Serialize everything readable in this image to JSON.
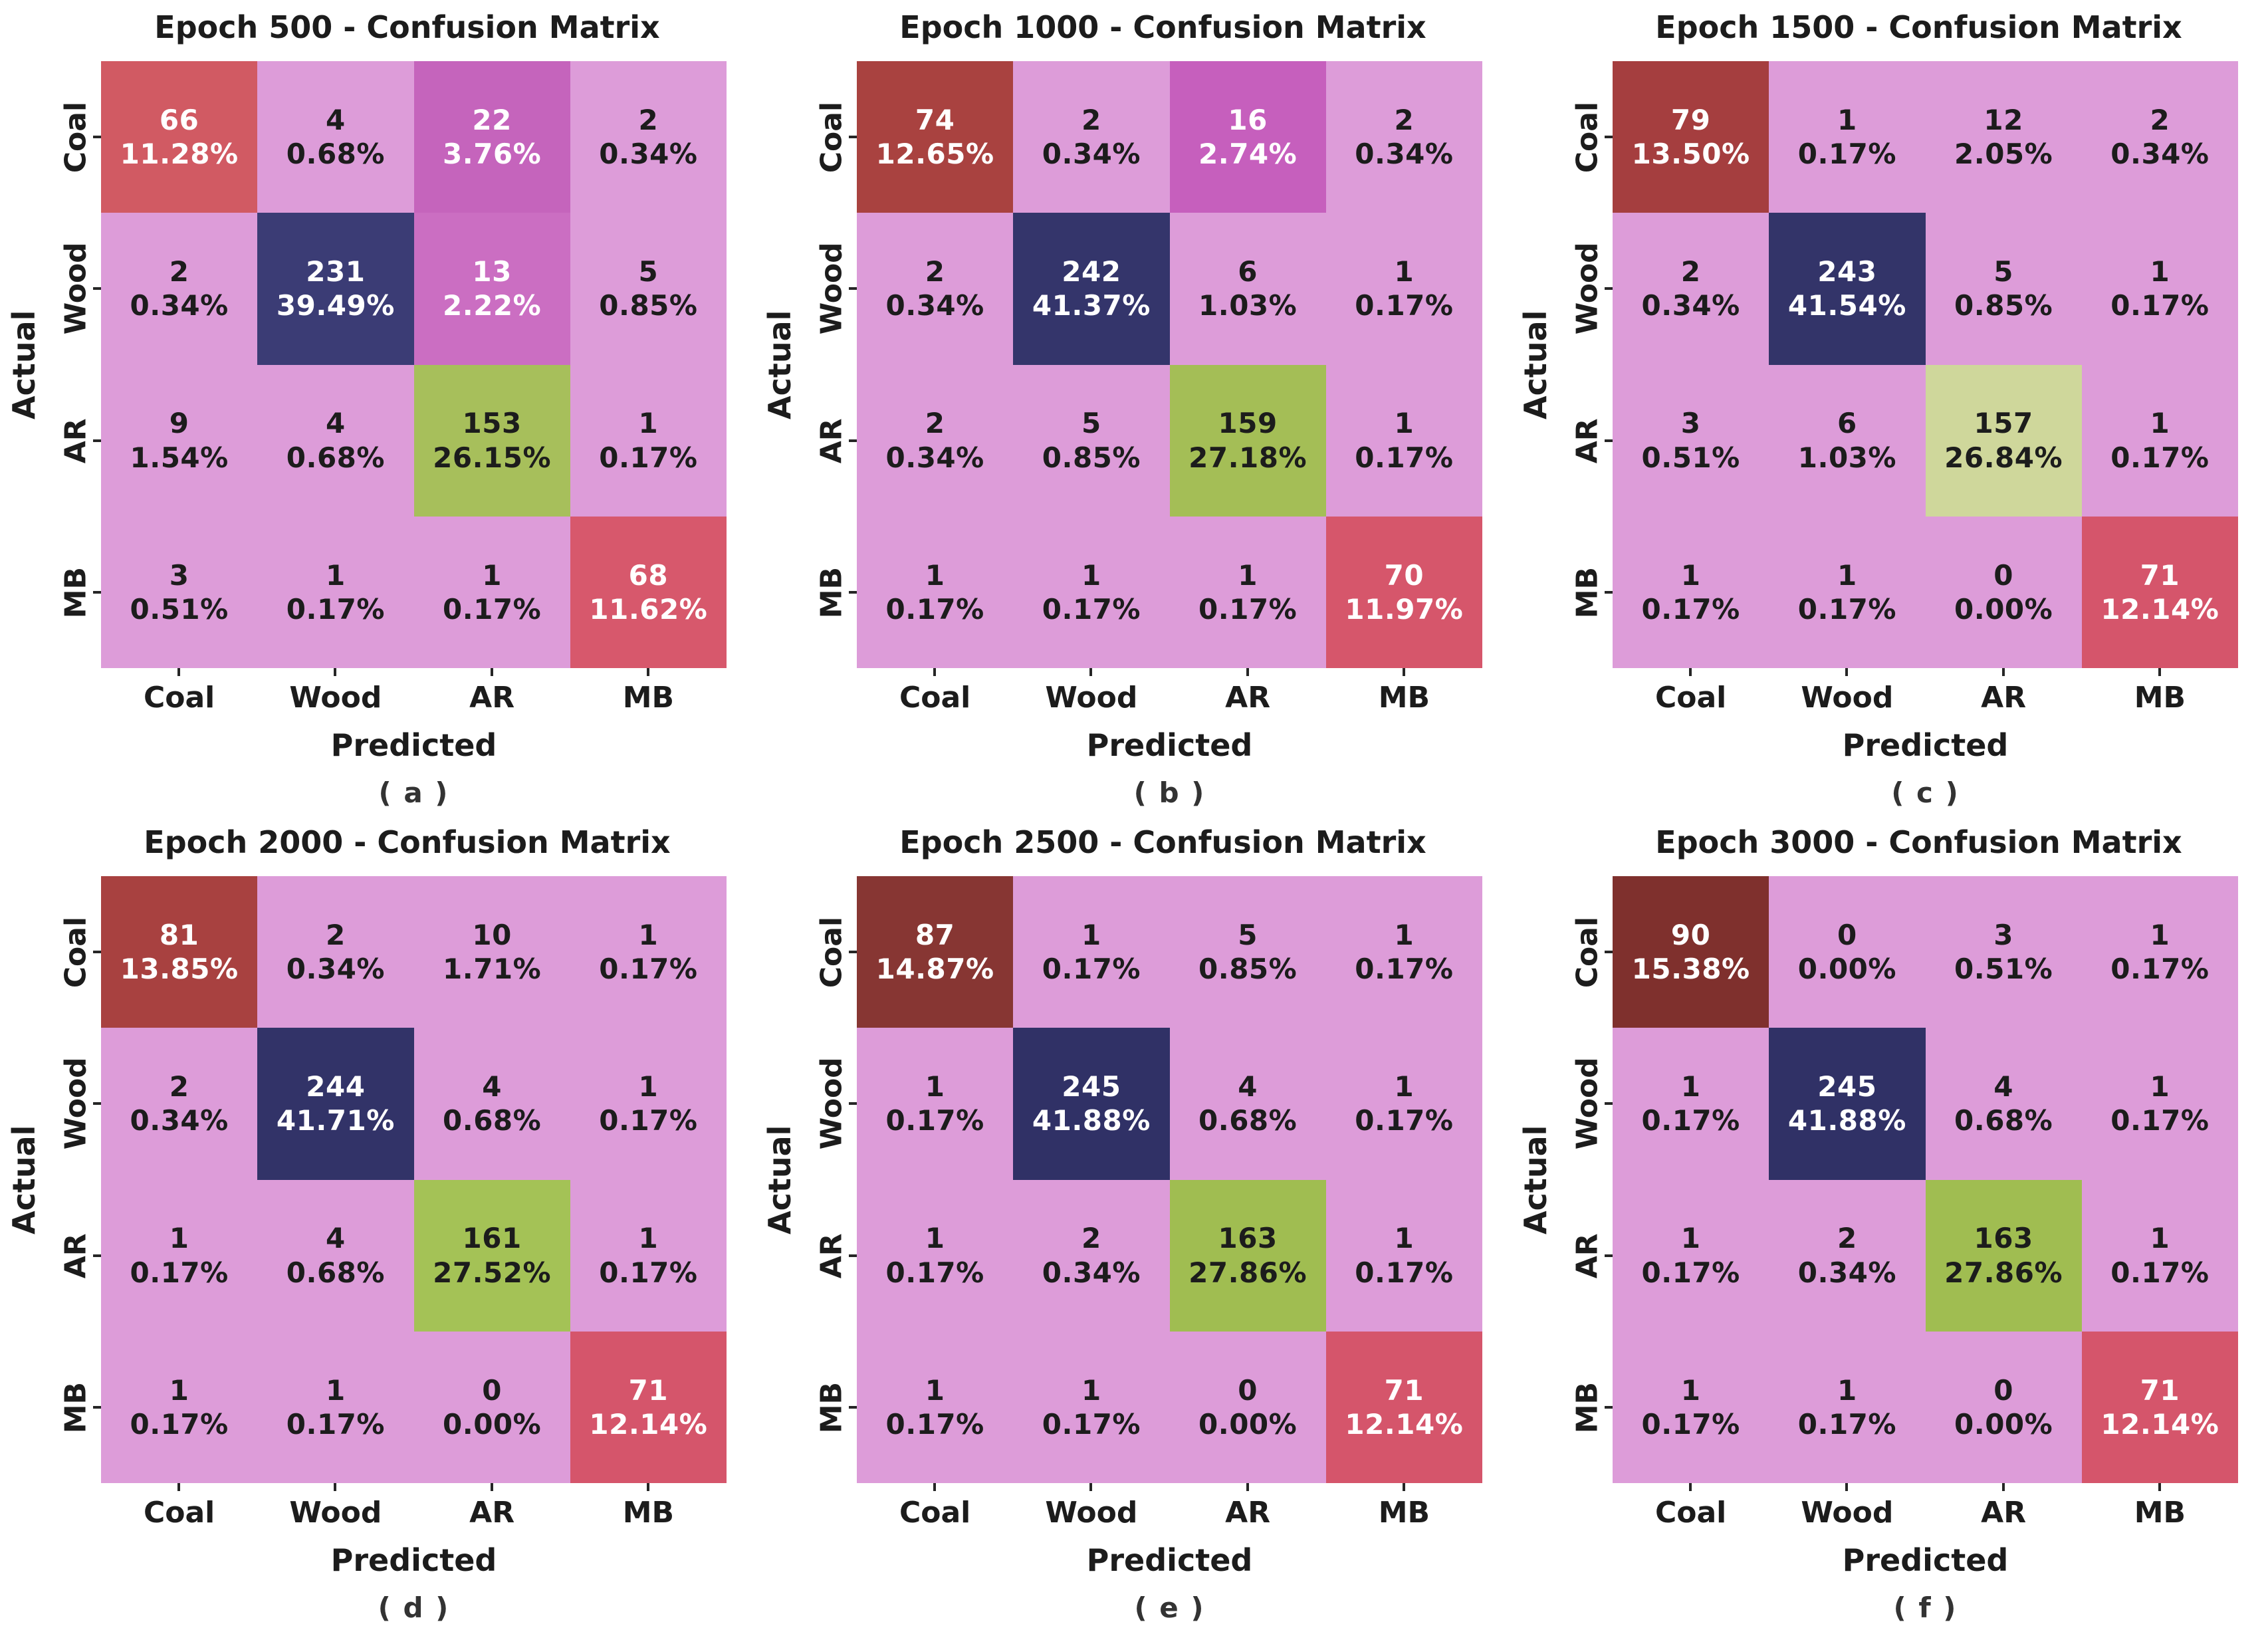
{
  "colors": {
    "plum": "#DD9CD9",
    "text_dark": "#1c1c1c",
    "text_light": "#ffffff"
  },
  "axis": {
    "x_label": "Predicted",
    "y_label": "Actual",
    "classes": [
      "Coal",
      "Wood",
      "AR",
      "MB"
    ]
  },
  "chart_data": [
    {
      "type": "heatmap",
      "title": "Epoch 500 - Confusion Matrix",
      "caption": "( a )",
      "xlabel": "Predicted",
      "ylabel": "Actual",
      "x_categories": [
        "Coal",
        "Wood",
        "AR",
        "MB"
      ],
      "y_categories": [
        "Coal",
        "Wood",
        "AR",
        "MB"
      ],
      "cells": [
        [
          {
            "count": 66,
            "pct": "11.28%",
            "bg": "#D15A63",
            "fg": "light"
          },
          {
            "count": 4,
            "pct": "0.68%"
          },
          {
            "count": 22,
            "pct": "3.76%",
            "bg": "#C564BC",
            "fg": "light"
          },
          {
            "count": 2,
            "pct": "0.34%"
          }
        ],
        [
          {
            "count": 2,
            "pct": "0.34%"
          },
          {
            "count": 231,
            "pct": "39.49%",
            "bg": "#3B3C75",
            "fg": "light"
          },
          {
            "count": 13,
            "pct": "2.22%",
            "bg": "#CB6EC2",
            "fg": "light"
          },
          {
            "count": 5,
            "pct": "0.85%"
          }
        ],
        [
          {
            "count": 9,
            "pct": "1.54%"
          },
          {
            "count": 4,
            "pct": "0.68%"
          },
          {
            "count": 153,
            "pct": "26.15%",
            "bg": "#A7BF5B"
          },
          {
            "count": 1,
            "pct": "0.17%"
          }
        ],
        [
          {
            "count": 3,
            "pct": "0.51%"
          },
          {
            "count": 1,
            "pct": "0.17%"
          },
          {
            "count": 1,
            "pct": "0.17%"
          },
          {
            "count": 68,
            "pct": "11.62%",
            "bg": "#D7586C",
            "fg": "light"
          }
        ]
      ]
    },
    {
      "type": "heatmap",
      "title": "Epoch 1000 - Confusion Matrix",
      "caption": "( b )",
      "xlabel": "Predicted",
      "ylabel": "Actual",
      "x_categories": [
        "Coal",
        "Wood",
        "AR",
        "MB"
      ],
      "y_categories": [
        "Coal",
        "Wood",
        "AR",
        "MB"
      ],
      "cells": [
        [
          {
            "count": 74,
            "pct": "12.65%",
            "bg": "#A94240",
            "fg": "light"
          },
          {
            "count": 2,
            "pct": "0.34%"
          },
          {
            "count": 16,
            "pct": "2.74%",
            "bg": "#C65FBD",
            "fg": "light"
          },
          {
            "count": 2,
            "pct": "0.34%"
          }
        ],
        [
          {
            "count": 2,
            "pct": "0.34%"
          },
          {
            "count": 242,
            "pct": "41.37%",
            "bg": "#34356B",
            "fg": "light"
          },
          {
            "count": 6,
            "pct": "1.03%"
          },
          {
            "count": 1,
            "pct": "0.17%"
          }
        ],
        [
          {
            "count": 2,
            "pct": "0.34%"
          },
          {
            "count": 5,
            "pct": "0.85%"
          },
          {
            "count": 159,
            "pct": "27.18%",
            "bg": "#A4BE56"
          },
          {
            "count": 1,
            "pct": "0.17%"
          }
        ],
        [
          {
            "count": 1,
            "pct": "0.17%"
          },
          {
            "count": 1,
            "pct": "0.17%"
          },
          {
            "count": 1,
            "pct": "0.17%"
          },
          {
            "count": 70,
            "pct": "11.97%",
            "bg": "#D6566B",
            "fg": "light"
          }
        ]
      ]
    },
    {
      "type": "heatmap",
      "title": "Epoch 1500 - Confusion Matrix",
      "caption": "( c )",
      "xlabel": "Predicted",
      "ylabel": "Actual",
      "x_categories": [
        "Coal",
        "Wood",
        "AR",
        "MB"
      ],
      "y_categories": [
        "Coal",
        "Wood",
        "AR",
        "MB"
      ],
      "cells": [
        [
          {
            "count": 79,
            "pct": "13.50%",
            "bg": "#A53E3F",
            "fg": "light"
          },
          {
            "count": 1,
            "pct": "0.17%"
          },
          {
            "count": 12,
            "pct": "2.05%"
          },
          {
            "count": 2,
            "pct": "0.34%"
          }
        ],
        [
          {
            "count": 2,
            "pct": "0.34%"
          },
          {
            "count": 243,
            "pct": "41.54%",
            "bg": "#333469",
            "fg": "light"
          },
          {
            "count": 5,
            "pct": "0.85%"
          },
          {
            "count": 1,
            "pct": "0.17%"
          }
        ],
        [
          {
            "count": 3,
            "pct": "0.51%"
          },
          {
            "count": 6,
            "pct": "1.03%"
          },
          {
            "count": 157,
            "pct": "26.84%",
            "bg": "#CFD79B"
          },
          {
            "count": 1,
            "pct": "0.17%"
          }
        ],
        [
          {
            "count": 1,
            "pct": "0.17%"
          },
          {
            "count": 1,
            "pct": "0.17%"
          },
          {
            "count": 0,
            "pct": "0.00%"
          },
          {
            "count": 71,
            "pct": "12.14%",
            "bg": "#D5556B",
            "fg": "light"
          }
        ]
      ]
    },
    {
      "type": "heatmap",
      "title": "Epoch 2000 - Confusion Matrix",
      "caption": "( d )",
      "xlabel": "Predicted",
      "ylabel": "Actual",
      "x_categories": [
        "Coal",
        "Wood",
        "AR",
        "MB"
      ],
      "y_categories": [
        "Coal",
        "Wood",
        "AR",
        "MB"
      ],
      "cells": [
        [
          {
            "count": 81,
            "pct": "13.85%",
            "bg": "#A84140",
            "fg": "light"
          },
          {
            "count": 2,
            "pct": "0.34%"
          },
          {
            "count": 10,
            "pct": "1.71%"
          },
          {
            "count": 1,
            "pct": "0.17%"
          }
        ],
        [
          {
            "count": 2,
            "pct": "0.34%"
          },
          {
            "count": 244,
            "pct": "41.71%",
            "bg": "#323368",
            "fg": "light"
          },
          {
            "count": 4,
            "pct": "0.68%"
          },
          {
            "count": 1,
            "pct": "0.17%"
          }
        ],
        [
          {
            "count": 1,
            "pct": "0.17%"
          },
          {
            "count": 4,
            "pct": "0.68%"
          },
          {
            "count": 161,
            "pct": "27.52%",
            "bg": "#A4C256"
          },
          {
            "count": 1,
            "pct": "0.17%"
          }
        ],
        [
          {
            "count": 1,
            "pct": "0.17%"
          },
          {
            "count": 1,
            "pct": "0.17%"
          },
          {
            "count": 0,
            "pct": "0.00%"
          },
          {
            "count": 71,
            "pct": "12.14%",
            "bg": "#D5556B",
            "fg": "light"
          }
        ]
      ]
    },
    {
      "type": "heatmap",
      "title": "Epoch 2500 - Confusion Matrix",
      "caption": "( e )",
      "xlabel": "Predicted",
      "ylabel": "Actual",
      "x_categories": [
        "Coal",
        "Wood",
        "AR",
        "MB"
      ],
      "y_categories": [
        "Coal",
        "Wood",
        "AR",
        "MB"
      ],
      "cells": [
        [
          {
            "count": 87,
            "pct": "14.87%",
            "bg": "#873633",
            "fg": "light"
          },
          {
            "count": 1,
            "pct": "0.17%"
          },
          {
            "count": 5,
            "pct": "0.85%"
          },
          {
            "count": 1,
            "pct": "0.17%"
          }
        ],
        [
          {
            "count": 1,
            "pct": "0.17%"
          },
          {
            "count": 245,
            "pct": "41.88%",
            "bg": "#303166",
            "fg": "light"
          },
          {
            "count": 4,
            "pct": "0.68%"
          },
          {
            "count": 1,
            "pct": "0.17%"
          }
        ],
        [
          {
            "count": 1,
            "pct": "0.17%"
          },
          {
            "count": 2,
            "pct": "0.34%"
          },
          {
            "count": 163,
            "pct": "27.86%",
            "bg": "#A0BD51"
          },
          {
            "count": 1,
            "pct": "0.17%"
          }
        ],
        [
          {
            "count": 1,
            "pct": "0.17%"
          },
          {
            "count": 1,
            "pct": "0.17%"
          },
          {
            "count": 0,
            "pct": "0.00%"
          },
          {
            "count": 71,
            "pct": "12.14%",
            "bg": "#D5556B",
            "fg": "light"
          }
        ]
      ]
    },
    {
      "type": "heatmap",
      "title": "Epoch 3000 - Confusion Matrix",
      "caption": "( f )",
      "xlabel": "Predicted",
      "ylabel": "Actual",
      "x_categories": [
        "Coal",
        "Wood",
        "AR",
        "MB"
      ],
      "y_categories": [
        "Coal",
        "Wood",
        "AR",
        "MB"
      ],
      "cells": [
        [
          {
            "count": 90,
            "pct": "15.38%",
            "bg": "#7F302D",
            "fg": "light"
          },
          {
            "count": 0,
            "pct": "0.00%"
          },
          {
            "count": 3,
            "pct": "0.51%"
          },
          {
            "count": 1,
            "pct": "0.17%"
          }
        ],
        [
          {
            "count": 1,
            "pct": "0.17%"
          },
          {
            "count": 245,
            "pct": "41.88%",
            "bg": "#303166",
            "fg": "light"
          },
          {
            "count": 4,
            "pct": "0.68%"
          },
          {
            "count": 1,
            "pct": "0.17%"
          }
        ],
        [
          {
            "count": 1,
            "pct": "0.17%"
          },
          {
            "count": 2,
            "pct": "0.34%"
          },
          {
            "count": 163,
            "pct": "27.86%",
            "bg": "#A0BD51"
          },
          {
            "count": 1,
            "pct": "0.17%"
          }
        ],
        [
          {
            "count": 1,
            "pct": "0.17%"
          },
          {
            "count": 1,
            "pct": "0.17%"
          },
          {
            "count": 0,
            "pct": "0.00%"
          },
          {
            "count": 71,
            "pct": "12.14%",
            "bg": "#D5556B",
            "fg": "light"
          }
        ]
      ]
    }
  ]
}
